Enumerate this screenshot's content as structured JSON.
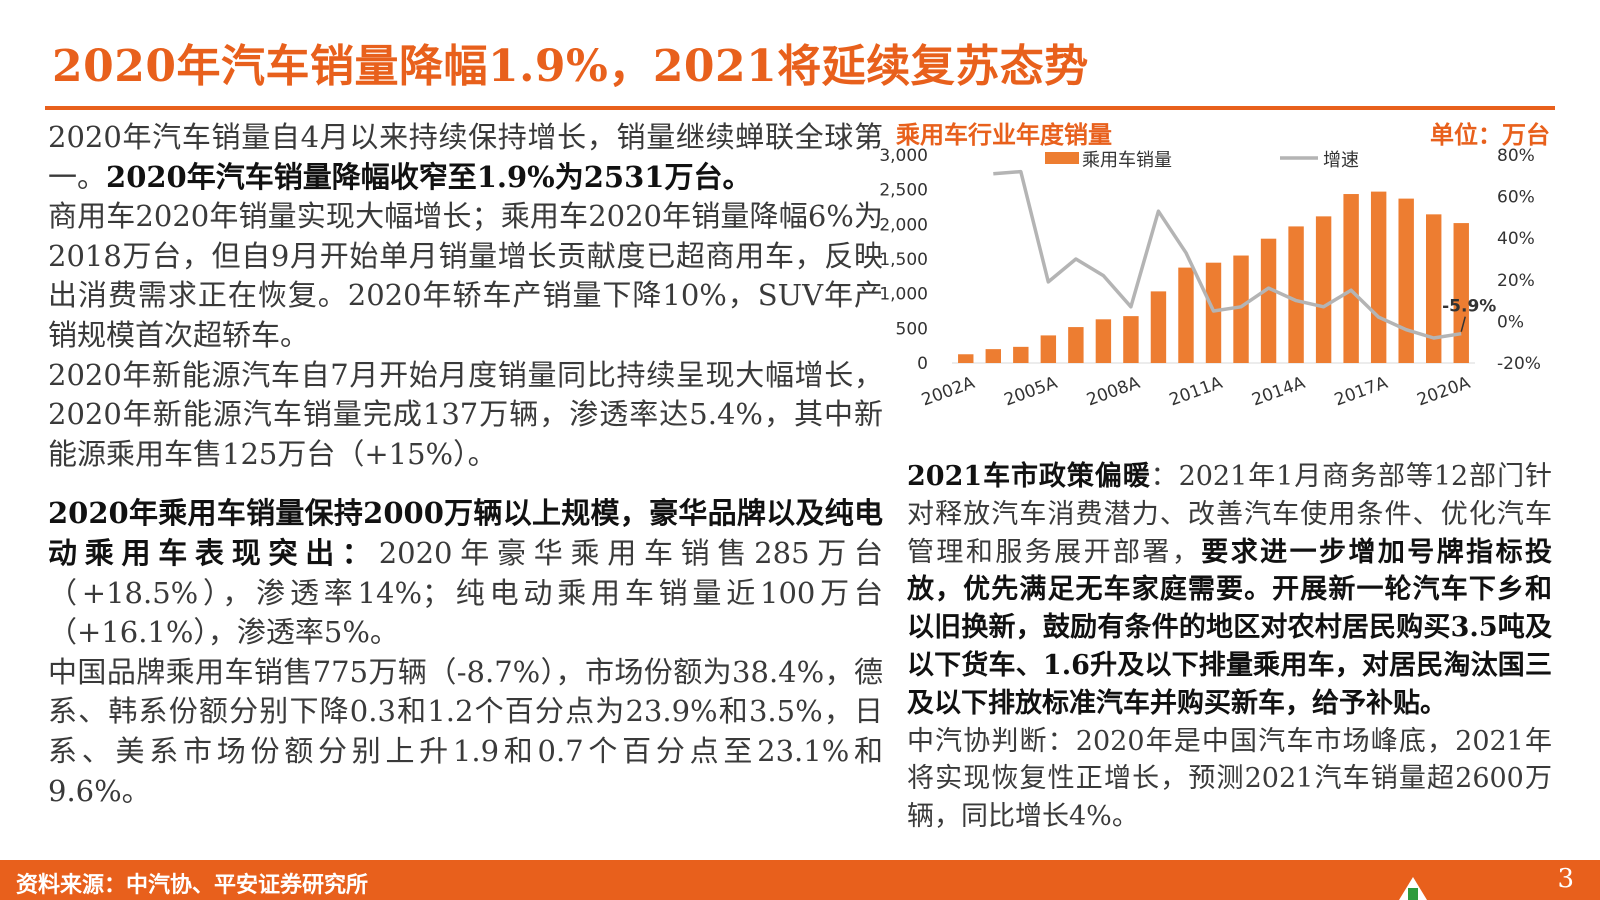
{
  "title": "2020年汽车销量降幅1.9%，2021将延续复苏态势",
  "left": {
    "p1_a": "2020年汽车销量自4月以来持续保持增长，销量继续蝉联全球第一。",
    "p1_b": "2020年汽车销量降幅收窄至1.9%为2531万台。",
    "p1_c": "商用车2020年销量实现大幅增长；乘用车2020年销量降幅6%为2018万台，但自9月开始单月销量增长贡献度已超商用车，反映出消费需求正在恢复。2020年轿车产销量下降10%，SUV年产销规模首次超轿车。",
    "p2": "2020年新能源汽车自7月开始月度销量同比持续呈现大幅增长，2020年新能源汽车销量完成137万辆，渗透率达5.4%，其中新能源乘用车售125万台（+15%）。",
    "p3_a": "2020年乘用车销量保持2000万辆以上规模，豪华品牌以及纯电动乘用车表现突出：",
    "p3_b": "2020年豪华乘用车销售285万台（+18.5%），渗透率14%；纯电动乘用车销量近100万台（+16.1%），渗透率5%。",
    "p4": "中国品牌乘用车销售775万辆（-8.7%），市场份额为38.4%，德系、韩系份额分别下降0.3和1.2个百分点为23.9%和3.5%，日系、美系市场份额分别上升1.9和0.7个百分点至23.1%和9.6%。"
  },
  "chart": {
    "title": "乘用车行业年度销量",
    "unit": "单位：万台"
  },
  "chart_data": {
    "type": "bar",
    "categories": [
      "2002A",
      "2003A",
      "2004A",
      "2005A",
      "2006A",
      "2007A",
      "2008A",
      "2009A",
      "2010A",
      "2011A",
      "2012A",
      "2013A",
      "2014A",
      "2015A",
      "2016A",
      "2017A",
      "2018A",
      "2019A",
      "2020A"
    ],
    "x_tick_labels": [
      "2002A",
      "2005A",
      "2008A",
      "2011A",
      "2014A",
      "2017A",
      "2020A"
    ],
    "series": [
      {
        "name": "乘用车销量",
        "kind": "bar",
        "axis": "left",
        "color": "#ed7d31",
        "values": [
          126,
          200,
          233,
          398,
          518,
          630,
          676,
          1033,
          1376,
          1447,
          1550,
          1793,
          1970,
          2115,
          2437,
          2472,
          2371,
          2144,
          2018
        ]
      },
      {
        "name": "增速",
        "kind": "line",
        "axis": "right",
        "color": "#b4b4b4",
        "values": [
          null,
          71,
          72,
          19,
          30,
          22,
          7,
          53,
          33,
          5,
          7,
          16,
          10,
          7,
          15,
          2,
          -4,
          -8,
          -5.9
        ]
      }
    ],
    "y_left": {
      "min": 0,
      "max": 3000,
      "ticks": [
        "0",
        "500",
        "1,000",
        "1,500",
        "2,000",
        "2,500",
        "3,000"
      ]
    },
    "y_right": {
      "min": -20,
      "max": 80,
      "ticks": [
        "-20%",
        "0%",
        "20%",
        "40%",
        "60%",
        "80%"
      ]
    },
    "annotation": "-5.9%",
    "legend": "top",
    "grid": false
  },
  "right": {
    "p1_label": "2021车市政策偏暖",
    "p1_a": "：2021年1月商务部等12部门针对释放汽车消费潜力、改善汽车使用条件、优化汽车管理和服务展开部署，",
    "p1_b": "要求进一步增加号牌指标投放，优先满足无车家庭需要。开展新一轮汽车下乡和以旧换新，鼓励有条件的地区对农村居民购买3.5吨及以下货车、1.6升及以下排量乘用车，对居民淘汰国三及以下排放标准汽车并购买新车，给予补贴。",
    "p2": "中汽协判断：2020年是中国汽车市场峰底，2021年将实现恢复性正增长，预测2021汽车销量超2600万辆，同比增长4%。"
  },
  "footer": {
    "source": "资料来源：中汽协、平安证券研究所",
    "page": "3"
  }
}
